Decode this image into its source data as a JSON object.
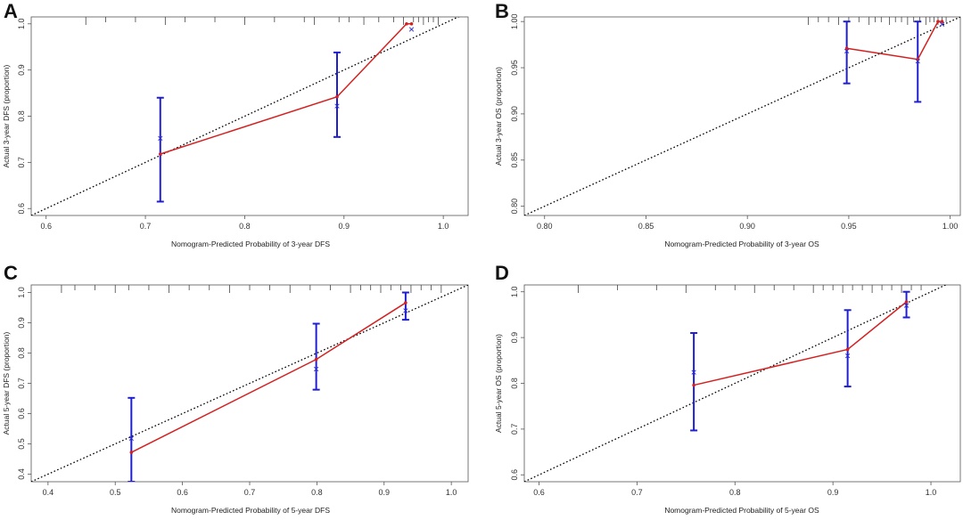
{
  "chart_data": [
    {
      "type": "scatter",
      "panel": "A",
      "xlabel": "Nomogram-Predicted Probability of 3-year DFS",
      "ylabel": "Actual 3-year DFS (proportion)",
      "xlim": [
        0.585,
        1.025
      ],
      "ylim": [
        0.585,
        1.015
      ],
      "xticks": [
        "0.6",
        "0.7",
        "0.8",
        "0.9",
        "1.0"
      ],
      "yticks": [
        "0.6",
        "0.7",
        "0.8",
        "0.9",
        "1.0"
      ],
      "reference_line": "ideal diagonal (dotted)",
      "apparent_points": [
        {
          "x": 0.715,
          "y": 0.718
        },
        {
          "x": 0.893,
          "y": 0.842
        },
        {
          "x": 0.963,
          "y": 1.0
        },
        {
          "x": 0.968,
          "y": 1.0
        }
      ],
      "corrected_points": [
        {
          "x": 0.715,
          "y": 0.752
        },
        {
          "x": 0.893,
          "y": 0.822
        },
        {
          "x": 0.968,
          "y": 0.988
        }
      ],
      "error_bars": [
        {
          "x": 0.715,
          "low": 0.615,
          "high": 0.84
        },
        {
          "x": 0.893,
          "low": 0.755,
          "high": 0.938
        }
      ],
      "rug": [
        0.64,
        0.66,
        0.69,
        0.72,
        0.74,
        0.77,
        0.8,
        0.83,
        0.86,
        0.87,
        0.895,
        0.905,
        0.92,
        0.935,
        0.95,
        0.96,
        0.97,
        0.975,
        0.98,
        0.985,
        0.99,
        0.995
      ]
    },
    {
      "type": "scatter",
      "panel": "B",
      "xlabel": "Nomogram-Predicted Probability of 3-year OS",
      "ylabel": "Actual 3-year OS (proportion)",
      "xlim": [
        0.79,
        1.005
      ],
      "ylim": [
        0.79,
        1.005
      ],
      "xticks": [
        "0.80",
        "0.85",
        "0.90",
        "0.95",
        "1.00"
      ],
      "yticks": [
        "0.80",
        "0.85",
        "0.90",
        "0.95",
        "1.00"
      ],
      "reference_line": "ideal diagonal (dotted)",
      "apparent_points": [
        {
          "x": 0.949,
          "y": 0.971
        },
        {
          "x": 0.984,
          "y": 0.959
        },
        {
          "x": 0.994,
          "y": 1.0
        },
        {
          "x": 0.996,
          "y": 1.0
        }
      ],
      "corrected_points": [
        {
          "x": 0.949,
          "y": 0.968
        },
        {
          "x": 0.984,
          "y": 0.957
        },
        {
          "x": 0.996,
          "y": 0.997
        }
      ],
      "error_bars": [
        {
          "x": 0.949,
          "low": 0.933,
          "high": 1.0
        },
        {
          "x": 0.984,
          "low": 0.913,
          "high": 1.0
        }
      ],
      "rug": [
        0.93,
        0.935,
        0.94,
        0.945,
        0.95,
        0.955,
        0.96,
        0.963,
        0.966,
        0.97,
        0.973,
        0.976,
        0.979,
        0.982,
        0.985,
        0.988,
        0.99,
        0.992,
        0.994,
        0.996,
        0.998
      ]
    },
    {
      "type": "scatter",
      "panel": "C",
      "xlabel": "Nomogram-Predicted Probability of 5-year DFS",
      "ylabel": "Actual 5-year DFS (proportion)",
      "xlim": [
        0.375,
        1.025
      ],
      "ylim": [
        0.375,
        1.025
      ],
      "xticks": [
        "0.4",
        "0.5",
        "0.6",
        "0.7",
        "0.8",
        "0.9",
        "1.0"
      ],
      "yticks": [
        "0.4",
        "0.5",
        "0.6",
        "0.7",
        "0.8",
        "0.9",
        "1.0"
      ],
      "reference_line": "ideal diagonal (dotted)",
      "apparent_points": [
        {
          "x": 0.524,
          "y": 0.472
        },
        {
          "x": 0.799,
          "y": 0.779
        },
        {
          "x": 0.932,
          "y": 0.966
        }
      ],
      "corrected_points": [
        {
          "x": 0.524,
          "y": 0.518
        },
        {
          "x": 0.799,
          "y": 0.747
        },
        {
          "x": 0.932,
          "y": 0.94
        }
      ],
      "error_bars": [
        {
          "x": 0.524,
          "low": 0.375,
          "high": 0.652
        },
        {
          "x": 0.799,
          "low": 0.679,
          "high": 0.897
        },
        {
          "x": 0.932,
          "low": 0.91,
          "high": 1.0
        }
      ],
      "rug": [
        0.42,
        0.44,
        0.47,
        0.5,
        0.52,
        0.55,
        0.58,
        0.61,
        0.64,
        0.67,
        0.7,
        0.73,
        0.76,
        0.79,
        0.82,
        0.85,
        0.865,
        0.88,
        0.895,
        0.91,
        0.925,
        0.94,
        0.955,
        0.97,
        0.985
      ]
    },
    {
      "type": "scatter",
      "panel": "D",
      "xlabel": "Nomogram-Predicted Probability of 5-year OS",
      "ylabel": "Actual 5-year OS (proportion)",
      "xlim": [
        0.585,
        1.03
      ],
      "ylim": [
        0.585,
        1.015
      ],
      "xticks": [
        "0.6",
        "0.7",
        "0.8",
        "0.9",
        "1.0"
      ],
      "yticks": [
        "0.6",
        "0.7",
        "0.8",
        "0.9",
        "1.0"
      ],
      "reference_line": "ideal diagonal (dotted)",
      "apparent_points": [
        {
          "x": 0.758,
          "y": 0.796
        },
        {
          "x": 0.915,
          "y": 0.874
        },
        {
          "x": 0.975,
          "y": 0.978
        }
      ],
      "corrected_points": [
        {
          "x": 0.758,
          "y": 0.824
        },
        {
          "x": 0.915,
          "y": 0.86
        },
        {
          "x": 0.975,
          "y": 0.97
        }
      ],
      "error_bars": [
        {
          "x": 0.758,
          "low": 0.697,
          "high": 0.91
        },
        {
          "x": 0.915,
          "low": 0.793,
          "high": 0.96
        },
        {
          "x": 0.975,
          "low": 0.944,
          "high": 1.0
        }
      ],
      "rug": [
        0.64,
        0.68,
        0.72,
        0.75,
        0.78,
        0.8,
        0.82,
        0.84,
        0.86,
        0.88,
        0.89,
        0.9,
        0.91,
        0.92,
        0.93,
        0.94,
        0.95,
        0.96,
        0.97,
        0.98,
        0.99
      ]
    }
  ],
  "colors": {
    "apparent_line": "#d42020",
    "corrected_marker": "#2a2ad0",
    "error_bar": "#1f1fd1",
    "ideal_line": "#000000",
    "axis": "#555555"
  }
}
